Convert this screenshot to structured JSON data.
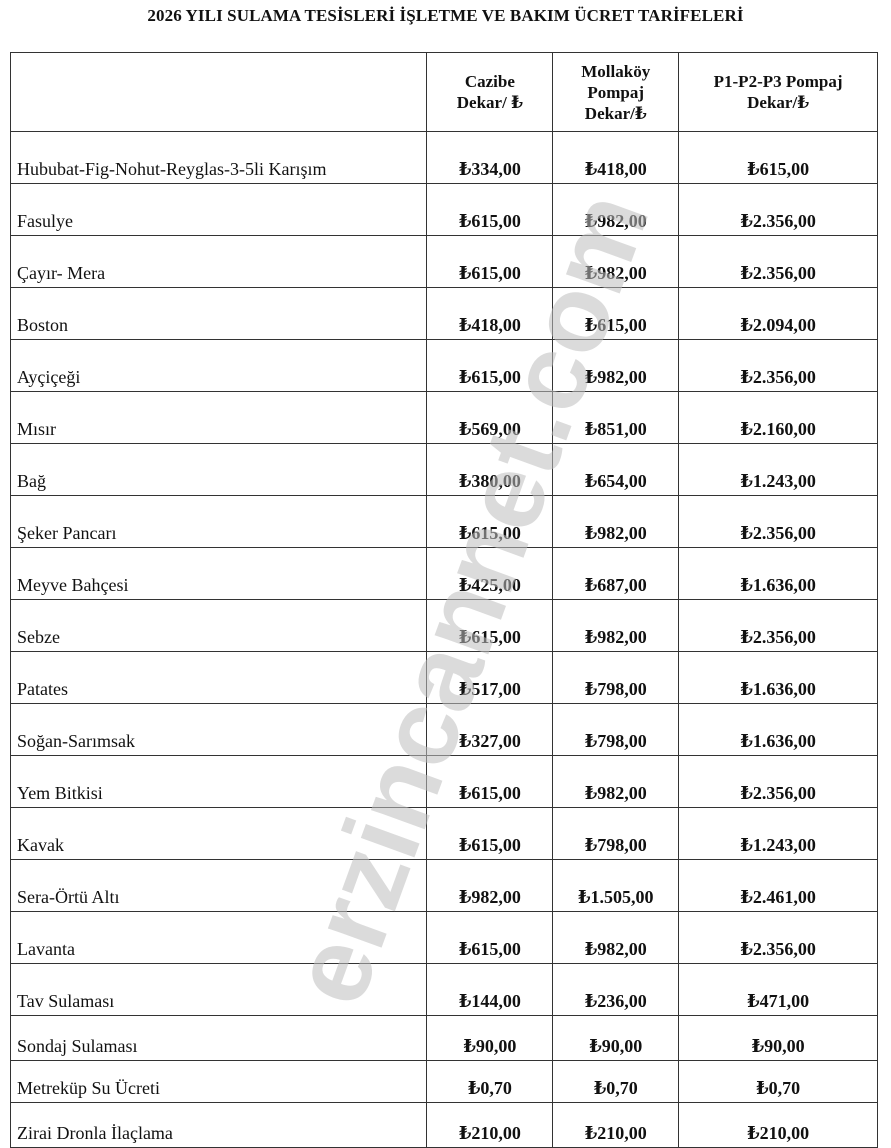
{
  "title": "2026 YILI SULAMA TESİSLERİ İŞLETME VE BAKIM ÜCRET TARİFELERİ",
  "watermark": "erzincannet.com",
  "columns": [
    "",
    "Cazibe Dekar/ ₺",
    "Mollaköy Pompaj Dekar/₺",
    "P1-P2-P3 Pompaj Dekar/₺"
  ],
  "rows": [
    {
      "name": "Hububat-Fig-Nohut-Reyglas-3-5li Karışım",
      "cazibe": "₺334,00",
      "mollakoy": "₺418,00",
      "pompaj": "₺615,00"
    },
    {
      "name": "Fasulye",
      "cazibe": "₺615,00",
      "mollakoy": "₺982,00",
      "pompaj": "₺2.356,00"
    },
    {
      "name": "Çayır- Mera",
      "cazibe": "₺615,00",
      "mollakoy": "₺982,00",
      "pompaj": "₺2.356,00"
    },
    {
      "name": "Boston",
      "cazibe": "₺418,00",
      "mollakoy": "₺615,00",
      "pompaj": "₺2.094,00"
    },
    {
      "name": "Ayçiçeği",
      "cazibe": "₺615,00",
      "mollakoy": "₺982,00",
      "pompaj": "₺2.356,00"
    },
    {
      "name": "Mısır",
      "cazibe": "₺569,00",
      "mollakoy": "₺851,00",
      "pompaj": "₺2.160,00"
    },
    {
      "name": "Bağ",
      "cazibe": "₺380,00",
      "mollakoy": "₺654,00",
      "pompaj": "₺1.243,00"
    },
    {
      "name": "Şeker Pancarı",
      "cazibe": "₺615,00",
      "mollakoy": "₺982,00",
      "pompaj": "₺2.356,00"
    },
    {
      "name": "Meyve Bahçesi",
      "cazibe": "₺425,00",
      "mollakoy": "₺687,00",
      "pompaj": "₺1.636,00"
    },
    {
      "name": "Sebze",
      "cazibe": "₺615,00",
      "mollakoy": "₺982,00",
      "pompaj": "₺2.356,00"
    },
    {
      "name": "Patates",
      "cazibe": "₺517,00",
      "mollakoy": "₺798,00",
      "pompaj": "₺1.636,00"
    },
    {
      "name": "Soğan-Sarımsak",
      "cazibe": "₺327,00",
      "mollakoy": "₺798,00",
      "pompaj": "₺1.636,00"
    },
    {
      "name": "Yem Bitkisi",
      "cazibe": "₺615,00",
      "mollakoy": "₺982,00",
      "pompaj": "₺2.356,00"
    },
    {
      "name": "Kavak",
      "cazibe": "₺615,00",
      "mollakoy": "₺798,00",
      "pompaj": "₺1.243,00"
    },
    {
      "name": "Sera-Örtü Altı",
      "cazibe": "₺982,00",
      "mollakoy": "₺1.505,00",
      "pompaj": "₺2.461,00"
    },
    {
      "name": "Lavanta",
      "cazibe": "₺615,00",
      "mollakoy": "₺982,00",
      "pompaj": "₺2.356,00"
    },
    {
      "name": "Tav Sulaması",
      "cazibe": "₺144,00",
      "mollakoy": "₺236,00",
      "pompaj": "₺471,00"
    },
    {
      "name": "Sondaj Sulaması",
      "cazibe": "₺90,00",
      "mollakoy": "₺90,00",
      "pompaj": "₺90,00"
    },
    {
      "name": "Metreküp Su Ücreti",
      "cazibe": "₺0,70",
      "mollakoy": "₺0,70",
      "pompaj": "₺0,70"
    },
    {
      "name": "Zirai Dronla İlaçlama",
      "cazibe": "₺210,00",
      "mollakoy": "₺210,00",
      "pompaj": "₺210,00"
    }
  ]
}
